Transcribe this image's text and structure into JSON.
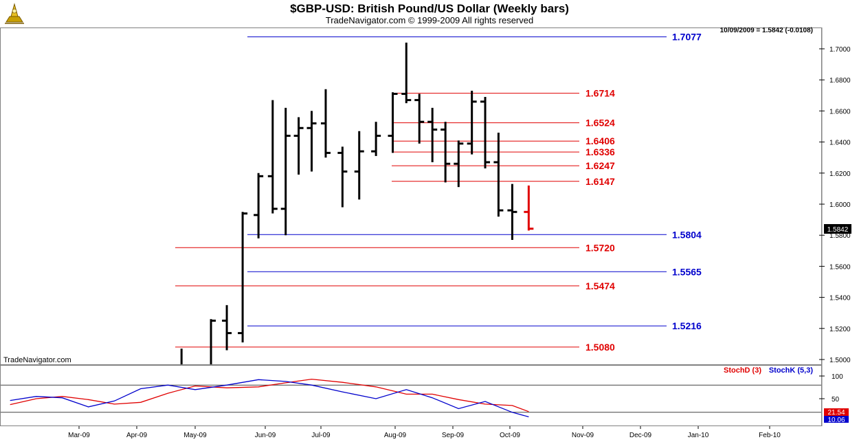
{
  "title": "$GBP-USD:  British Pound/US Dollar  (Weekly bars)",
  "subtitle": "TradeNavigator.com © 1999-2009 All rights reserved",
  "watermark": "TradeNavigator.com",
  "readout": "10/09/2009 = 1.5842 (-0.0108)",
  "last_price_tag": "1.5842",
  "stoch_labels": {
    "d": "StochD (3)",
    "k": "StochK (5,3)"
  },
  "stoch_last": {
    "d": "21.54",
    "k": "10.06"
  },
  "colors": {
    "up_bar": "#000000",
    "down_bar": "#e00000",
    "blue_level": "#0000cc",
    "red_level": "#e00000",
    "stoch_d": "#e00000",
    "stoch_k": "#0000cc"
  },
  "chart_data": [
    {
      "type": "ohlc",
      "title": "$GBP-USD:  British Pound/US Dollar  (Weekly bars)",
      "x_ticks": [
        "Mar-09",
        "Apr-09",
        "May-09",
        "Jun-09",
        "Jul-09",
        "Aug-09",
        "Sep-09",
        "Oct-09",
        "Nov-09",
        "Dec-09",
        "Jan-10",
        "Feb-10"
      ],
      "y_ticks": [
        "1.5000",
        "1.5200",
        "1.5400",
        "1.5600",
        "1.5800",
        "1.6000",
        "1.6200",
        "1.6400",
        "1.6600",
        "1.6800",
        "1.7000"
      ],
      "ylim": [
        1.496,
        1.716
      ],
      "bars": [
        {
          "week": "2009-04-24",
          "open": 1.47,
          "high": 1.507,
          "low": 1.46,
          "close": 1.49
        },
        {
          "week": "2009-05-08",
          "open": 1.495,
          "high": 1.526,
          "low": 1.48,
          "close": 1.525
        },
        {
          "week": "2009-05-15",
          "open": 1.525,
          "high": 1.535,
          "low": 1.506,
          "close": 1.517
        },
        {
          "week": "2009-05-22",
          "open": 1.517,
          "high": 1.595,
          "low": 1.511,
          "close": 1.594
        },
        {
          "week": "2009-05-29",
          "open": 1.593,
          "high": 1.62,
          "low": 1.578,
          "close": 1.618
        },
        {
          "week": "2009-06-05",
          "open": 1.618,
          "high": 1.667,
          "low": 1.594,
          "close": 1.597
        },
        {
          "week": "2009-06-12",
          "open": 1.597,
          "high": 1.662,
          "low": 1.58,
          "close": 1.644
        },
        {
          "week": "2009-06-19",
          "open": 1.644,
          "high": 1.656,
          "low": 1.619,
          "close": 1.649
        },
        {
          "week": "2009-06-26",
          "open": 1.649,
          "high": 1.66,
          "low": 1.621,
          "close": 1.652
        },
        {
          "week": "2009-07-03",
          "open": 1.652,
          "high": 1.674,
          "low": 1.63,
          "close": 1.633
        },
        {
          "week": "2009-07-10",
          "open": 1.633,
          "high": 1.637,
          "low": 1.598,
          "close": 1.621
        },
        {
          "week": "2009-07-17",
          "open": 1.621,
          "high": 1.647,
          "low": 1.603,
          "close": 1.634
        },
        {
          "week": "2009-07-24",
          "open": 1.634,
          "high": 1.653,
          "low": 1.631,
          "close": 1.644
        },
        {
          "week": "2009-07-31",
          "open": 1.644,
          "high": 1.672,
          "low": 1.633,
          "close": 1.671
        },
        {
          "week": "2009-08-07",
          "open": 1.671,
          "high": 1.704,
          "low": 1.665,
          "close": 1.667
        },
        {
          "week": "2009-08-14",
          "open": 1.667,
          "high": 1.671,
          "low": 1.639,
          "close": 1.653
        },
        {
          "week": "2009-08-21",
          "open": 1.653,
          "high": 1.662,
          "low": 1.627,
          "close": 1.648
        },
        {
          "week": "2009-08-28",
          "open": 1.648,
          "high": 1.653,
          "low": 1.614,
          "close": 1.626
        },
        {
          "week": "2009-09-04",
          "open": 1.626,
          "high": 1.641,
          "low": 1.611,
          "close": 1.639
        },
        {
          "week": "2009-09-11",
          "open": 1.639,
          "high": 1.673,
          "low": 1.632,
          "close": 1.666
        },
        {
          "week": "2009-09-18",
          "open": 1.666,
          "high": 1.669,
          "low": 1.623,
          "close": 1.627
        },
        {
          "week": "2009-09-25",
          "open": 1.627,
          "high": 1.646,
          "low": 1.592,
          "close": 1.596
        },
        {
          "week": "2009-10-02",
          "open": 1.596,
          "high": 1.613,
          "low": 1.577,
          "close": 1.595
        },
        {
          "week": "2009-10-09",
          "open": 1.595,
          "high": 1.612,
          "low": 1.583,
          "close": 1.5842
        }
      ],
      "levels": [
        {
          "label": "1.7077",
          "value": 1.7077,
          "color": "blue"
        },
        {
          "label": "1.6714",
          "value": 1.6714,
          "color": "red"
        },
        {
          "label": "1.6524",
          "value": 1.6524,
          "color": "red"
        },
        {
          "label": "1.6406",
          "value": 1.6406,
          "color": "red"
        },
        {
          "label": "1.6336",
          "value": 1.6336,
          "color": "red"
        },
        {
          "label": "1.6247",
          "value": 1.6247,
          "color": "red"
        },
        {
          "label": "1.6147",
          "value": 1.6147,
          "color": "red"
        },
        {
          "label": "1.5804",
          "value": 1.5804,
          "color": "blue"
        },
        {
          "label": "1.5720",
          "value": 1.572,
          "color": "red"
        },
        {
          "label": "1.5565",
          "value": 1.5565,
          "color": "blue"
        },
        {
          "label": "1.5474",
          "value": 1.5474,
          "color": "red"
        },
        {
          "label": "1.5216",
          "value": 1.5216,
          "color": "blue"
        },
        {
          "label": "1.5080",
          "value": 1.508,
          "color": "red"
        }
      ]
    },
    {
      "type": "line",
      "title": "",
      "y_ticks": [
        "100",
        "50"
      ],
      "ylim": [
        0,
        100
      ],
      "reference_lines": [
        80,
        20
      ],
      "series": [
        {
          "name": "StochD (3)",
          "values": [
            {
              "week": "2009-01-23",
              "v": 37
            },
            {
              "week": "2009-02-06",
              "v": 50
            },
            {
              "week": "2009-02-20",
              "v": 55
            },
            {
              "week": "2009-03-06",
              "v": 48
            },
            {
              "week": "2009-03-20",
              "v": 38
            },
            {
              "week": "2009-04-03",
              "v": 42
            },
            {
              "week": "2009-04-17",
              "v": 62
            },
            {
              "week": "2009-05-01",
              "v": 78
            },
            {
              "week": "2009-05-15",
              "v": 74
            },
            {
              "week": "2009-05-29",
              "v": 76
            },
            {
              "week": "2009-06-12",
              "v": 85
            },
            {
              "week": "2009-06-26",
              "v": 93
            },
            {
              "week": "2009-07-10",
              "v": 86
            },
            {
              "week": "2009-07-24",
              "v": 76
            },
            {
              "week": "2009-08-07",
              "v": 60
            },
            {
              "week": "2009-08-21",
              "v": 60
            },
            {
              "week": "2009-09-04",
              "v": 48
            },
            {
              "week": "2009-09-18",
              "v": 38
            },
            {
              "week": "2009-10-02",
              "v": 35
            },
            {
              "week": "2009-10-09",
              "v": 21.54
            }
          ]
        },
        {
          "name": "StochK (5,3)",
          "values": [
            {
              "week": "2009-01-23",
              "v": 46
            },
            {
              "week": "2009-02-06",
              "v": 55
            },
            {
              "week": "2009-02-20",
              "v": 52
            },
            {
              "week": "2009-03-06",
              "v": 32
            },
            {
              "week": "2009-03-20",
              "v": 45
            },
            {
              "week": "2009-04-03",
              "v": 72
            },
            {
              "week": "2009-04-17",
              "v": 80
            },
            {
              "week": "2009-05-01",
              "v": 70
            },
            {
              "week": "2009-05-15",
              "v": 80
            },
            {
              "week": "2009-05-29",
              "v": 92
            },
            {
              "week": "2009-06-12",
              "v": 88
            },
            {
              "week": "2009-06-26",
              "v": 80
            },
            {
              "week": "2009-07-10",
              "v": 65
            },
            {
              "week": "2009-07-24",
              "v": 50
            },
            {
              "week": "2009-08-07",
              "v": 70
            },
            {
              "week": "2009-08-21",
              "v": 52
            },
            {
              "week": "2009-09-04",
              "v": 28
            },
            {
              "week": "2009-09-18",
              "v": 44
            },
            {
              "week": "2009-10-02",
              "v": 20
            },
            {
              "week": "2009-10-09",
              "v": 10.06
            }
          ]
        }
      ]
    }
  ]
}
